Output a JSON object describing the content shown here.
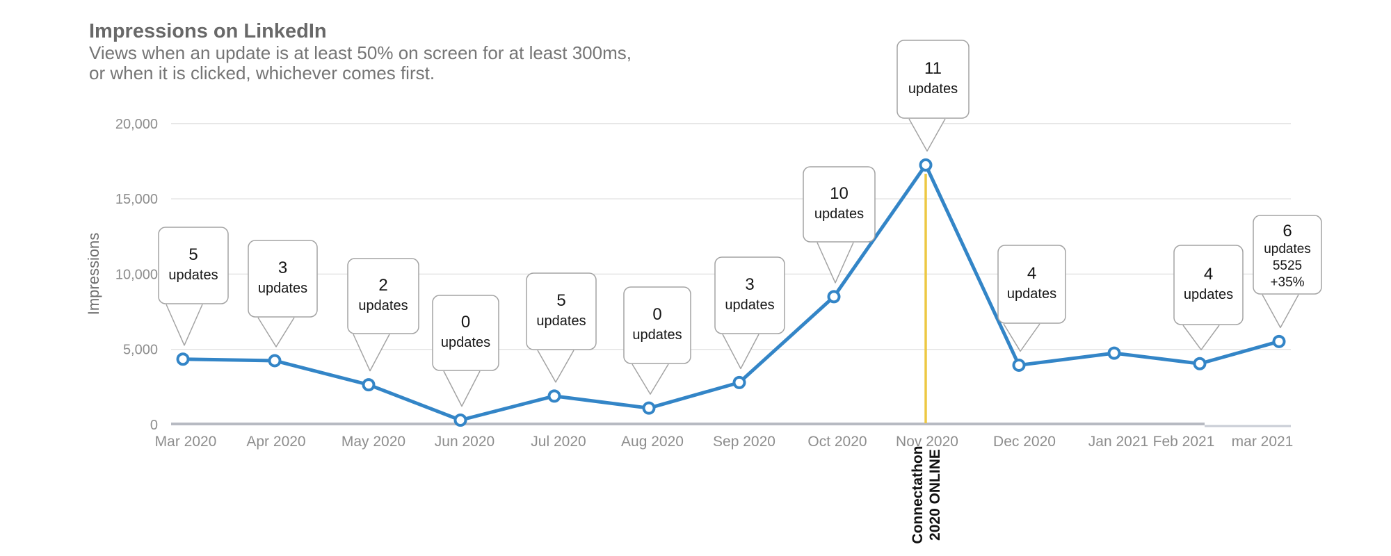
{
  "header": {
    "title": "Impressions on LinkedIn",
    "subtitle_line1": "Views when an update is at least 50% on screen for at least 300ms,",
    "subtitle_line2": "or when it is clicked, whichever comes first."
  },
  "colors": {
    "series_blue": "#3385c7",
    "annotation_yellow": "#edc843",
    "gridline": "#e4e4e4",
    "axis": "#b7bac2",
    "axis_extension": "#c9cdd6",
    "tick_text": "#8d8d8d",
    "callout_border": "#a3a3a3",
    "callout_text": "#161616"
  },
  "chart_data": {
    "type": "line",
    "title": "Impressions on LinkedIn",
    "xlabel": "",
    "ylabel": "Impressions",
    "ylim": [
      0,
      20000
    ],
    "grid": true,
    "legend_position": "none",
    "ytick_values": [
      0,
      5000,
      10000,
      15000,
      20000
    ],
    "ytick_labels": [
      "0",
      "5,000",
      "10,000",
      "15,000",
      "20,000"
    ],
    "categories": [
      "Mar 2020",
      "Apr 2020",
      "May 2020",
      "Jun 2020",
      "Jul 2020",
      "Aug 2020",
      "Sep 2020",
      "Oct 2020",
      "Nov 2020",
      "Dec 2020",
      "Jan 2021",
      "Feb 2021",
      "mar 2021"
    ],
    "series": [
      {
        "name": "Impressions",
        "color": "#3385c7",
        "values": [
          4350,
          4250,
          2650,
          300,
          1900,
          1100,
          2800,
          8500,
          17250,
          3950,
          4750,
          4050,
          5525
        ]
      }
    ],
    "callouts": [
      {
        "month": "Mar 2020",
        "lines": [
          "5",
          "updates"
        ]
      },
      {
        "month": "Apr 2020",
        "lines": [
          "3",
          "updates"
        ]
      },
      {
        "month": "May 2020",
        "lines": [
          "2",
          "updates"
        ]
      },
      {
        "month": "Jun 2020",
        "lines": [
          "0",
          "updates"
        ]
      },
      {
        "month": "Jul 2020",
        "lines": [
          "5",
          "updates"
        ]
      },
      {
        "month": "Aug 2020",
        "lines": [
          "0",
          "updates"
        ]
      },
      {
        "month": "Sep 2020",
        "lines": [
          "3",
          "updates"
        ]
      },
      {
        "month": "Oct 2020",
        "lines": [
          "10",
          "updates"
        ]
      },
      {
        "month": "Nov 2020",
        "lines": [
          "11",
          "updates"
        ]
      },
      {
        "month": "Dec 2020",
        "lines": [
          "4",
          "updates"
        ]
      },
      {
        "month": "Feb 2021",
        "lines": [
          "4",
          "updates"
        ]
      },
      {
        "month": "mar 2021",
        "lines": [
          "6",
          "updates",
          "5525",
          "+35%"
        ]
      }
    ],
    "annotation": {
      "month": "Nov 2020",
      "line_color": "#edc843",
      "label_line1": "Connectathon",
      "label_line2": "2020 ONLINE"
    }
  }
}
